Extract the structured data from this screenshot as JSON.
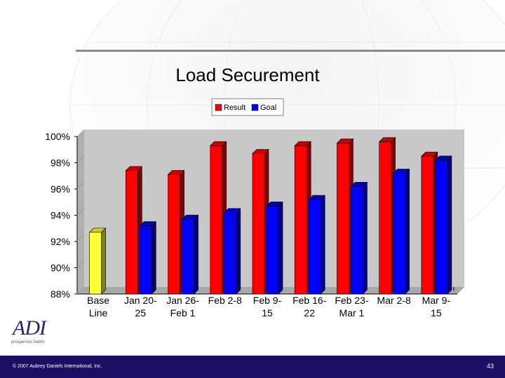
{
  "chart_data": {
    "type": "bar",
    "title": "Load Securement",
    "xlabel": "",
    "ylabel": "",
    "ylim": [
      88,
      100
    ],
    "y_ticks": [
      "100%",
      "98%",
      "96%",
      "94%",
      "92%",
      "90%",
      "88%"
    ],
    "y_tick_values": [
      100,
      98,
      96,
      94,
      92,
      90,
      88
    ],
    "categories": [
      [
        "Base",
        "Line"
      ],
      [
        "Jan 20-",
        "25"
      ],
      [
        "Jan 26-",
        "Feb 1"
      ],
      [
        "Feb 2-8",
        ""
      ],
      [
        "Feb 9-",
        "15"
      ],
      [
        "Feb 16-",
        "22"
      ],
      [
        "Feb 23-",
        "Mar 1"
      ],
      [
        "Mar 2-8",
        ""
      ],
      [
        "Mar 9-",
        "15"
      ]
    ],
    "legend": [
      "Result",
      "Goal"
    ],
    "legend_position": "top",
    "baseline_value": 92.7,
    "series": [
      {
        "name": "Result",
        "values": [
          null,
          97.4,
          97.1,
          99.3,
          98.7,
          99.3,
          99.5,
          99.6,
          98.5
        ]
      },
      {
        "name": "Goal",
        "values": [
          null,
          93.2,
          93.7,
          94.2,
          94.7,
          95.2,
          96.2,
          97.2,
          98.2
        ]
      }
    ],
    "colors": {
      "result": "#ff0000",
      "goal": "#0000ff",
      "baseline": "#ffff33",
      "wall": "#c8c8c8"
    },
    "grid": false
  },
  "footer": {
    "copyright": "© 2007 Aubrey Daniels International, Inc.",
    "page": "43"
  },
  "logo": {
    "mark": "ADI",
    "tagline": "prosperous habits"
  }
}
